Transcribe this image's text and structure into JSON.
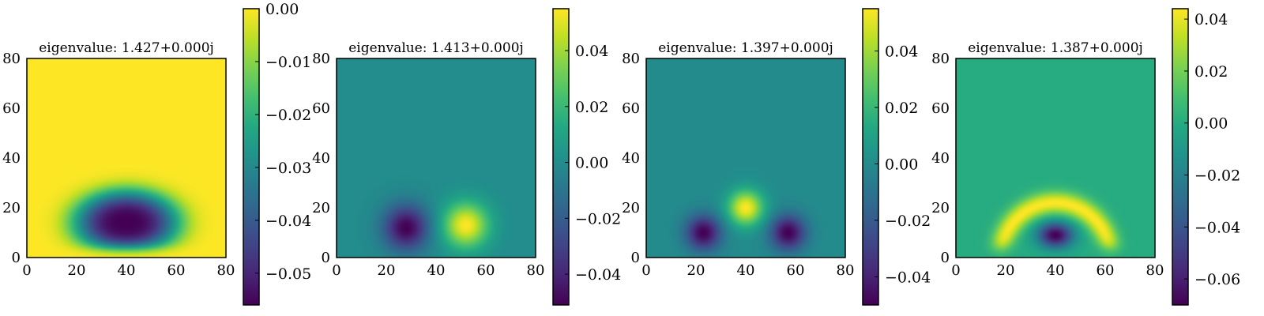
{
  "chart_data": [
    {
      "type": "heatmap",
      "title": "eigenvalue: 1.427+0.000j",
      "xlim": [
        0,
        80
      ],
      "ylim": [
        0,
        80
      ],
      "xticks": [
        "0",
        "20",
        "40",
        "60",
        "80"
      ],
      "yticks": [
        "0",
        "20",
        "40",
        "60",
        "80"
      ],
      "colormap": "viridis",
      "colorbar": {
        "range": [
          -0.056,
          0.0
        ],
        "ticks": [
          0.0,
          -0.01,
          -0.02,
          -0.03,
          -0.04,
          -0.05
        ],
        "tick_labels": [
          "0.00",
          "−0.01",
          "−0.02",
          "−0.03",
          "−0.04",
          "−0.05"
        ]
      },
      "background_value": 0.0,
      "features": [
        {
          "shape": "half-dome",
          "cx": 40,
          "cy": 14,
          "rx": 21,
          "ry": 13,
          "value": -0.056
        }
      ]
    },
    {
      "type": "heatmap",
      "title": "eigenvalue: 1.413+0.000j",
      "xlim": [
        0,
        80
      ],
      "ylim": [
        0,
        80
      ],
      "xticks": [
        "0",
        "20",
        "40",
        "60",
        "80"
      ],
      "yticks": [
        "0",
        "20",
        "40",
        "60",
        "80"
      ],
      "colormap": "viridis",
      "colorbar": {
        "range": [
          -0.051,
          0.055
        ],
        "ticks": [
          0.04,
          0.02,
          0.0,
          -0.02,
          -0.04
        ],
        "tick_labels": [
          "0.04",
          "0.02",
          "0.00",
          "−0.02",
          "−0.04"
        ]
      },
      "background_value": 0.0,
      "features": [
        {
          "shape": "lobe",
          "cx": 28,
          "cy": 12,
          "rx": 9,
          "ry": 9,
          "value": -0.051
        },
        {
          "shape": "lobe",
          "cx": 52,
          "cy": 13,
          "rx": 9,
          "ry": 9,
          "value": 0.055
        }
      ]
    },
    {
      "type": "heatmap",
      "title": "eigenvalue: 1.397+0.000j",
      "xlim": [
        0,
        80
      ],
      "ylim": [
        0,
        80
      ],
      "xticks": [
        "0",
        "20",
        "40",
        "60",
        "80"
      ],
      "yticks": [
        "0",
        "20",
        "40",
        "60",
        "80"
      ],
      "colormap": "viridis",
      "colorbar": {
        "range": [
          -0.05,
          0.055
        ],
        "ticks": [
          0.04,
          0.02,
          0.0,
          -0.02,
          -0.04
        ],
        "tick_labels": [
          "0.04",
          "0.02",
          "0.00",
          "−0.02",
          "−0.04"
        ]
      },
      "background_value": 0.0,
      "features": [
        {
          "shape": "lobe",
          "cx": 23,
          "cy": 10,
          "rx": 7,
          "ry": 7,
          "value": -0.05
        },
        {
          "shape": "lobe",
          "cx": 57,
          "cy": 10,
          "rx": 7,
          "ry": 7,
          "value": -0.05
        },
        {
          "shape": "lobe",
          "cx": 40,
          "cy": 20,
          "rx": 7,
          "ry": 7,
          "value": 0.055
        }
      ]
    },
    {
      "type": "heatmap",
      "title": "eigenvalue: 1.387+0.000j",
      "xlim": [
        0,
        80
      ],
      "ylim": [
        0,
        80
      ],
      "xticks": [
        "0",
        "20",
        "40",
        "60",
        "80"
      ],
      "yticks": [
        "0",
        "20",
        "40",
        "60",
        "80"
      ],
      "colormap": "viridis",
      "colorbar": {
        "range": [
          -0.07,
          0.044
        ],
        "ticks": [
          0.04,
          0.02,
          0.0,
          -0.02,
          -0.04,
          -0.06
        ],
        "tick_labels": [
          "0.04",
          "0.02",
          "0.00",
          "−0.02",
          "−0.04",
          "−0.06"
        ]
      },
      "background_value": 0.0,
      "features": [
        {
          "shape": "arc",
          "cx": 40,
          "cy": 0,
          "radius": 22,
          "width": 4.5,
          "value": 0.044
        },
        {
          "shape": "lobe",
          "cx": 40,
          "cy": 9,
          "rx": 7,
          "ry": 5,
          "value": -0.07
        }
      ]
    }
  ]
}
